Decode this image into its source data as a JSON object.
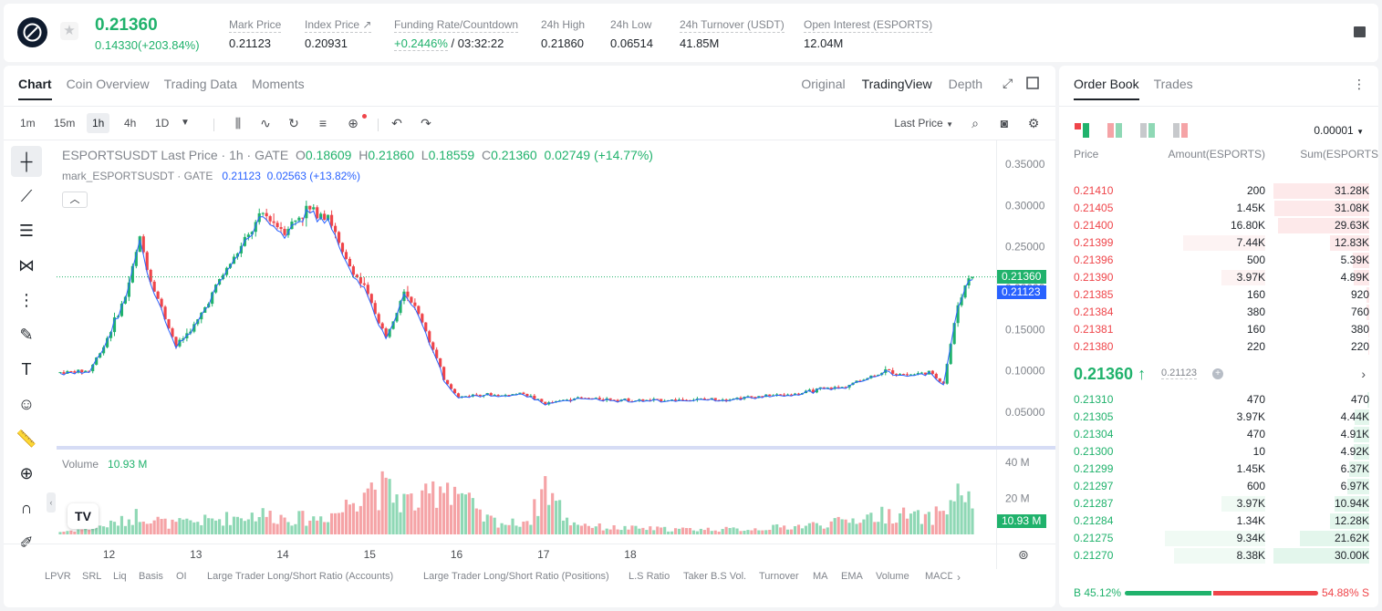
{
  "header": {
    "price": "0.21360",
    "change": "0.14330(+203.84%)",
    "stats": [
      {
        "label": "Mark Price",
        "value": "0.21123"
      },
      {
        "label": "Index Price ↗",
        "value": "0.20931"
      },
      {
        "label": "Funding Rate/Countdown",
        "value_green": "+0.2446%",
        "value": " / 03:32:22"
      },
      {
        "label": "24h High",
        "value": "0.21860"
      },
      {
        "label": "24h Low",
        "value": "0.06514"
      },
      {
        "label": "24h Turnover (USDT)",
        "value": "41.85M"
      },
      {
        "label": "Open Interest (ESPORTS)",
        "value": "12.04M"
      }
    ]
  },
  "chart_tabs": [
    "Chart",
    "Coin Overview",
    "Trading Data",
    "Moments"
  ],
  "chart_views": [
    "Original",
    "TradingView",
    "Depth"
  ],
  "timeframes": [
    "1m",
    "15m",
    "1h",
    "4h",
    "1D"
  ],
  "toolbar": {
    "price_type": "Last Price"
  },
  "legend": {
    "main": "ESPORTSUSDT Last Price · 1h · GATE",
    "o_lbl": "O",
    "o": "0.18609",
    "h_lbl": "H",
    "h": "0.21860",
    "l_lbl": "L",
    "l": "0.18559",
    "c_lbl": "C",
    "c": "0.21360",
    "chg": "0.02749 (+14.77%)",
    "mark": "mark_ESPORTSUSDT · GATE",
    "mark_val": "0.21123",
    "mark_chg": "0.02563 (+13.82%)",
    "volume_label": "Volume",
    "volume_val": "10.93 M"
  },
  "price_tags": {
    "last": "0.21360",
    "mark": "0.21123",
    "volume": "10.93 M"
  },
  "bottom_indicators": [
    "LPVR",
    "SRL",
    "Liq",
    "Basis",
    "OI",
    "Large Trader Long/Short Ratio (Accounts)",
    "Large Trader Long/Short Ratio (Positions)",
    "L.S Ratio",
    "Taker B.S Vol.",
    "Turnover",
    "MA",
    "EMA",
    "Volume",
    "MACD"
  ],
  "chart_data": {
    "type": "candlestick",
    "price_axis_ticks": [
      "0.35000",
      "0.30000",
      "0.25000",
      "0.20000",
      "0.15000",
      "0.10000",
      "0.05000"
    ],
    "volume_axis_ticks": [
      "40 M",
      "20 M"
    ],
    "x_ticks": [
      "12",
      "13",
      "14",
      "15",
      "16",
      "17",
      "18"
    ],
    "ylim": [
      0.02,
      0.37
    ],
    "close_path": [
      [
        0,
        0.098
      ],
      [
        8,
        0.1
      ],
      [
        12,
        0.13
      ],
      [
        18,
        0.19
      ],
      [
        22,
        0.26
      ],
      [
        25,
        0.21
      ],
      [
        32,
        0.13
      ],
      [
        38,
        0.16
      ],
      [
        44,
        0.21
      ],
      [
        50,
        0.25
      ],
      [
        56,
        0.29
      ],
      [
        62,
        0.27
      ],
      [
        68,
        0.295
      ],
      [
        74,
        0.29
      ],
      [
        78,
        0.24
      ],
      [
        84,
        0.2
      ],
      [
        90,
        0.14
      ],
      [
        95,
        0.2
      ],
      [
        100,
        0.16
      ],
      [
        106,
        0.09
      ],
      [
        110,
        0.068
      ],
      [
        116,
        0.072
      ],
      [
        122,
        0.07
      ],
      [
        128,
        0.073
      ],
      [
        134,
        0.06
      ],
      [
        142,
        0.067
      ],
      [
        150,
        0.066
      ],
      [
        160,
        0.064
      ],
      [
        172,
        0.065
      ],
      [
        184,
        0.066
      ],
      [
        196,
        0.07
      ],
      [
        204,
        0.072
      ],
      [
        210,
        0.078
      ],
      [
        216,
        0.08
      ],
      [
        222,
        0.09
      ],
      [
        228,
        0.1
      ],
      [
        234,
        0.095
      ],
      [
        240,
        0.098
      ],
      [
        244,
        0.085
      ],
      [
        248,
        0.18
      ],
      [
        251,
        0.2136
      ]
    ],
    "volume_profile": [
      [
        0,
        1.5
      ],
      [
        10,
        4
      ],
      [
        18,
        8
      ],
      [
        22,
        12
      ],
      [
        30,
        6
      ],
      [
        40,
        8
      ],
      [
        48,
        10
      ],
      [
        55,
        12
      ],
      [
        62,
        10
      ],
      [
        70,
        9
      ],
      [
        78,
        14
      ],
      [
        84,
        30
      ],
      [
        90,
        25
      ],
      [
        95,
        20
      ],
      [
        100,
        18
      ],
      [
        106,
        32
      ],
      [
        110,
        26
      ],
      [
        116,
        10
      ],
      [
        124,
        6
      ],
      [
        130,
        9
      ],
      [
        134,
        30
      ],
      [
        140,
        8
      ],
      [
        150,
        4
      ],
      [
        170,
        3
      ],
      [
        190,
        3
      ],
      [
        205,
        5
      ],
      [
        215,
        7
      ],
      [
        222,
        10
      ],
      [
        230,
        12
      ],
      [
        240,
        9
      ],
      [
        246,
        18
      ],
      [
        250,
        28
      ],
      [
        252,
        10.93
      ]
    ]
  },
  "order_book": {
    "tabs": [
      "Order Book",
      "Trades"
    ],
    "precision": "0.00001",
    "headers": [
      "Price",
      "Amount(ESPORTS)",
      "Sum(ESPORTS)"
    ],
    "asks": [
      {
        "price": "0.21410",
        "amount": "200",
        "sum": "31.28K",
        "depth": 1.0,
        "amt_depth": 0.0
      },
      {
        "price": "0.21405",
        "amount": "1.45K",
        "sum": "31.08K",
        "depth": 0.99,
        "amt_depth": 0.0
      },
      {
        "price": "0.21400",
        "amount": "16.80K",
        "sum": "29.63K",
        "depth": 0.95,
        "amt_depth": 0.0
      },
      {
        "price": "0.21399",
        "amount": "7.44K",
        "sum": "12.83K",
        "depth": 0.41,
        "amt_depth": 0.45
      },
      {
        "price": "0.21396",
        "amount": "500",
        "sum": "5.39K",
        "depth": 0.17,
        "amt_depth": 0.0
      },
      {
        "price": "0.21390",
        "amount": "3.97K",
        "sum": "4.89K",
        "depth": 0.16,
        "amt_depth": 0.24
      },
      {
        "price": "0.21385",
        "amount": "160",
        "sum": "920",
        "depth": 0.03,
        "amt_depth": 0.0
      },
      {
        "price": "0.21384",
        "amount": "380",
        "sum": "760",
        "depth": 0.025,
        "amt_depth": 0.0
      },
      {
        "price": "0.21381",
        "amount": "160",
        "sum": "380",
        "depth": 0.012,
        "amt_depth": 0.0
      },
      {
        "price": "0.21380",
        "amount": "220",
        "sum": "220",
        "depth": 0.007,
        "amt_depth": 0.0
      }
    ],
    "mid_price": "0.21360 ↑",
    "mid_mark": "0.21123",
    "bids": [
      {
        "price": "0.21310",
        "amount": "470",
        "sum": "470",
        "depth": 0.016,
        "amt_depth": 0.0
      },
      {
        "price": "0.21305",
        "amount": "3.97K",
        "sum": "4.44K",
        "depth": 0.15,
        "amt_depth": 0.0
      },
      {
        "price": "0.21304",
        "amount": "470",
        "sum": "4.91K",
        "depth": 0.16,
        "amt_depth": 0.0
      },
      {
        "price": "0.21300",
        "amount": "10",
        "sum": "4.92K",
        "depth": 0.16,
        "amt_depth": 0.0
      },
      {
        "price": "0.21299",
        "amount": "1.45K",
        "sum": "6.37K",
        "depth": 0.21,
        "amt_depth": 0.0
      },
      {
        "price": "0.21297",
        "amount": "600",
        "sum": "6.97K",
        "depth": 0.23,
        "amt_depth": 0.0
      },
      {
        "price": "0.21287",
        "amount": "3.97K",
        "sum": "10.94K",
        "depth": 0.36,
        "amt_depth": 0.24
      },
      {
        "price": "0.21284",
        "amount": "1.34K",
        "sum": "12.28K",
        "depth": 0.41,
        "amt_depth": 0.0
      },
      {
        "price": "0.21275",
        "amount": "9.34K",
        "sum": "21.62K",
        "depth": 0.72,
        "amt_depth": 0.55
      },
      {
        "price": "0.21270",
        "amount": "8.38K",
        "sum": "30.00K",
        "depth": 1.0,
        "amt_depth": 0.5
      }
    ],
    "ratio": {
      "buy": "B 45.12%",
      "sell": "54.88% S",
      "buy_frac": 0.4512
    }
  },
  "colors": {
    "up": "#20b26c",
    "down": "#ef454a",
    "up_vol": "#8fd8b5",
    "down_vol": "#f5a3a6",
    "mark_blue": "#2962ff"
  }
}
